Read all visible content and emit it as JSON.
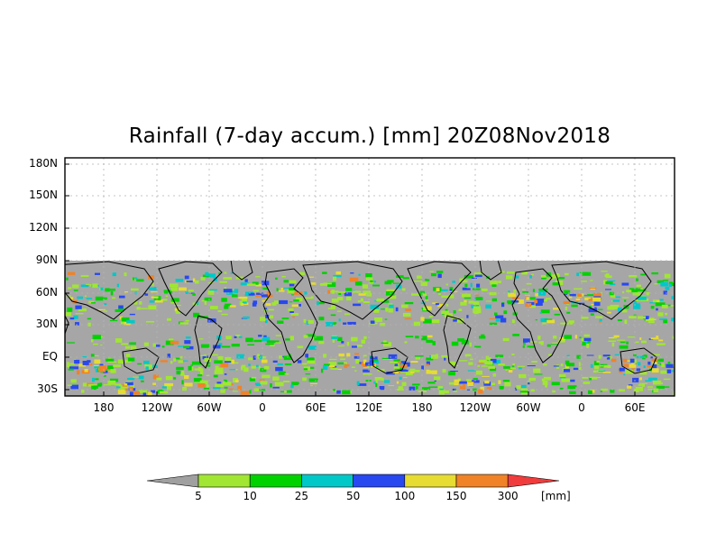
{
  "title": "Rainfall (7-day accum.) [mm] 20Z08Nov2018",
  "y_ticks": [
    "180N",
    "150N",
    "120N",
    "90N",
    "60N",
    "30N",
    "EQ",
    "30S"
  ],
  "x_ticks": [
    "180",
    "120W",
    "60W",
    "0",
    "60E",
    "120E",
    "180",
    "120W",
    "60W",
    "0",
    "60E"
  ],
  "colorbar": {
    "labels": [
      "5",
      "10",
      "25",
      "50",
      "100",
      "150",
      "300"
    ],
    "unit": "[mm]",
    "colors": {
      "below": "#a0a0a0",
      "bins": [
        "#a0e632",
        "#00d200",
        "#00c8c8",
        "#2848f0",
        "#e6dc32",
        "#f08228"
      ],
      "above": "#f03c3c"
    }
  },
  "colors": {
    "land_ocean_background": "#a6a6a6",
    "empty_region": "#ffffff",
    "coast": "#000000"
  }
}
